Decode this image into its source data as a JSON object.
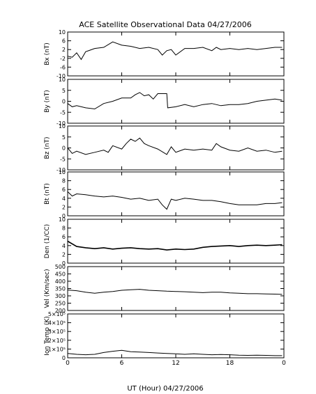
{
  "chart_data": [
    {
      "type": "line",
      "title": "ACE Satellite Observational Data   04/27/2006",
      "ylabel": "Bx (nT)",
      "ylim": [
        -10,
        10
      ],
      "yticks": [
        "10",
        "6",
        "2",
        "-2",
        "-6",
        "-10"
      ],
      "ytick_values": [
        10,
        6,
        2,
        -2,
        -6,
        -10
      ],
      "x": [
        0,
        0.5,
        1,
        1.5,
        2,
        3,
        4,
        5,
        6,
        7,
        8,
        9,
        10,
        10.5,
        11,
        11.5,
        12,
        13,
        14,
        15,
        16,
        16.5,
        17,
        18,
        19,
        20,
        21,
        22,
        23,
        23.8
      ],
      "y": [
        -1,
        -1.5,
        0.5,
        -2.5,
        1,
        2.5,
        3,
        5.5,
        4,
        3.5,
        2.5,
        3,
        2,
        -0.5,
        1.5,
        2,
        -0.5,
        2.5,
        2.5,
        3,
        1.5,
        3,
        2,
        2.5,
        2,
        2.5,
        2,
        2.5,
        3,
        3
      ]
    },
    {
      "type": "line",
      "ylabel": "By (nT)",
      "ylim": [
        -10,
        10
      ],
      "yticks": [
        "10",
        "5",
        "0",
        "-5",
        "-10"
      ],
      "ytick_values": [
        10,
        5,
        0,
        -5,
        -10
      ],
      "x": [
        0,
        0.5,
        1,
        2,
        3,
        4,
        5,
        6,
        7,
        7.5,
        8,
        8.5,
        9,
        9.5,
        10,
        11,
        11.1,
        12,
        13,
        14,
        15,
        16,
        17,
        18,
        19,
        20,
        21,
        22,
        23,
        23.8
      ],
      "y": [
        -1,
        -2.5,
        -2,
        -3,
        -3.5,
        -1,
        0,
        1.5,
        1.5,
        3,
        4,
        2.5,
        3,
        1,
        3.5,
        3.5,
        -3,
        -2.5,
        -1.5,
        -2.5,
        -1.5,
        -1,
        -2,
        -1.5,
        -1.5,
        -1,
        0,
        0.5,
        1,
        0.5
      ]
    },
    {
      "type": "line",
      "ylabel": "Bz (nT)",
      "ylim": [
        -10,
        10
      ],
      "yticks": [
        "10",
        "5",
        "0",
        "-5",
        "-10"
      ],
      "ytick_values": [
        10,
        5,
        0,
        -5,
        -10
      ],
      "x": [
        0,
        0.5,
        1,
        2,
        3,
        4,
        4.5,
        5,
        6,
        6.5,
        7,
        7.5,
        8,
        8.5,
        9,
        10,
        11,
        11.5,
        12,
        13,
        14,
        15,
        16,
        16.5,
        17,
        18,
        19,
        20,
        21,
        22,
        23,
        23.8
      ],
      "y": [
        0,
        -2.5,
        -1.5,
        -3,
        -2,
        -1,
        -2,
        1,
        -0.5,
        2,
        4,
        3,
        4.5,
        2,
        1,
        -0.5,
        -3,
        0.5,
        -2,
        -0.5,
        -1,
        -0.5,
        -1,
        2,
        0.5,
        -1,
        -1.5,
        0,
        -1.5,
        -1,
        -2,
        -1.5
      ]
    },
    {
      "type": "line",
      "ylabel": "Bt (nT)",
      "ylim": [
        0,
        10
      ],
      "yticks": [
        "10",
        "8",
        "6",
        "4",
        "2",
        "0"
      ],
      "ytick_values": [
        10,
        8,
        6,
        4,
        2,
        0
      ],
      "x": [
        0,
        0.5,
        1,
        2,
        3,
        4,
        5,
        6,
        7,
        8,
        9,
        10,
        10.5,
        11,
        11.5,
        12,
        13,
        14,
        15,
        16,
        17,
        18,
        19,
        20,
        21,
        22,
        23,
        23.8
      ],
      "y": [
        5.5,
        4.5,
        5,
        4.8,
        4.5,
        4.3,
        4.5,
        4.2,
        3.8,
        4,
        3.5,
        3.8,
        2.5,
        1.5,
        3.8,
        3.5,
        4,
        3.8,
        3.5,
        3.5,
        3.2,
        2.8,
        2.5,
        2.5,
        2.5,
        2.8,
        2.8,
        3
      ]
    },
    {
      "type": "line",
      "ylabel": "Den (1/CC)",
      "ylim": [
        0,
        10
      ],
      "yticks": [
        "10",
        "8",
        "6",
        "4",
        "2",
        "0"
      ],
      "ytick_values": [
        10,
        8,
        6,
        4,
        2,
        0
      ],
      "x": [
        0,
        1,
        2,
        3,
        4,
        5,
        6,
        7,
        8,
        9,
        10,
        11,
        12,
        13,
        14,
        15,
        16,
        17,
        18,
        19,
        20,
        21,
        22,
        23,
        23.8
      ],
      "y": [
        5,
        3.8,
        3.5,
        3.3,
        3.5,
        3.2,
        3.4,
        3.5,
        3.3,
        3.2,
        3.3,
        3,
        3.2,
        3.1,
        3.2,
        3.6,
        3.8,
        3.9,
        4,
        3.8,
        4,
        4.1,
        4,
        4.1,
        4.2
      ]
    },
    {
      "type": "line",
      "ylabel": "Vel (Km/sec)",
      "ylim": [
        200,
        500
      ],
      "yticks": [
        "500",
        "450",
        "400",
        "350",
        "300",
        "250",
        "200"
      ],
      "ytick_values": [
        500,
        450,
        400,
        350,
        300,
        250,
        200
      ],
      "x": [
        0,
        1,
        2,
        3,
        4,
        5,
        6,
        7,
        8,
        9,
        10,
        11,
        12,
        13,
        14,
        15,
        16,
        17,
        18,
        19,
        20,
        21,
        22,
        23,
        23.8
      ],
      "y": [
        340,
        335,
        325,
        318,
        325,
        330,
        338,
        342,
        345,
        338,
        335,
        332,
        330,
        328,
        325,
        322,
        325,
        325,
        320,
        318,
        315,
        315,
        313,
        312,
        310
      ]
    },
    {
      "type": "line",
      "ylabel": "Ion Temp (K)",
      "ylim": [
        0,
        500000
      ],
      "yticks": [
        "5×10⁵",
        "4×10⁵",
        "3×10⁵",
        "2×10⁵",
        "1×10⁵",
        "0"
      ],
      "ytick_values": [
        500000,
        400000,
        300000,
        200000,
        100000,
        0
      ],
      "x": [
        0,
        1,
        2,
        3,
        4,
        5,
        6,
        7,
        8,
        9,
        10,
        11,
        12,
        13,
        14,
        15,
        16,
        17,
        18,
        19,
        20,
        21,
        22,
        23,
        23.8
      ],
      "y": [
        50000,
        40000,
        35000,
        40000,
        60000,
        75000,
        85000,
        70000,
        65000,
        60000,
        55000,
        50000,
        45000,
        40000,
        45000,
        40000,
        35000,
        38000,
        35000,
        30000,
        28000,
        30000,
        28000,
        25000,
        25000
      ]
    }
  ],
  "x_axis": {
    "label": "UT (Hour)   04/27/2006",
    "xlim": [
      0,
      24
    ],
    "ticks": [
      "0",
      "6",
      "12",
      "18",
      "0"
    ],
    "tick_values": [
      0,
      6,
      12,
      18,
      24
    ]
  }
}
